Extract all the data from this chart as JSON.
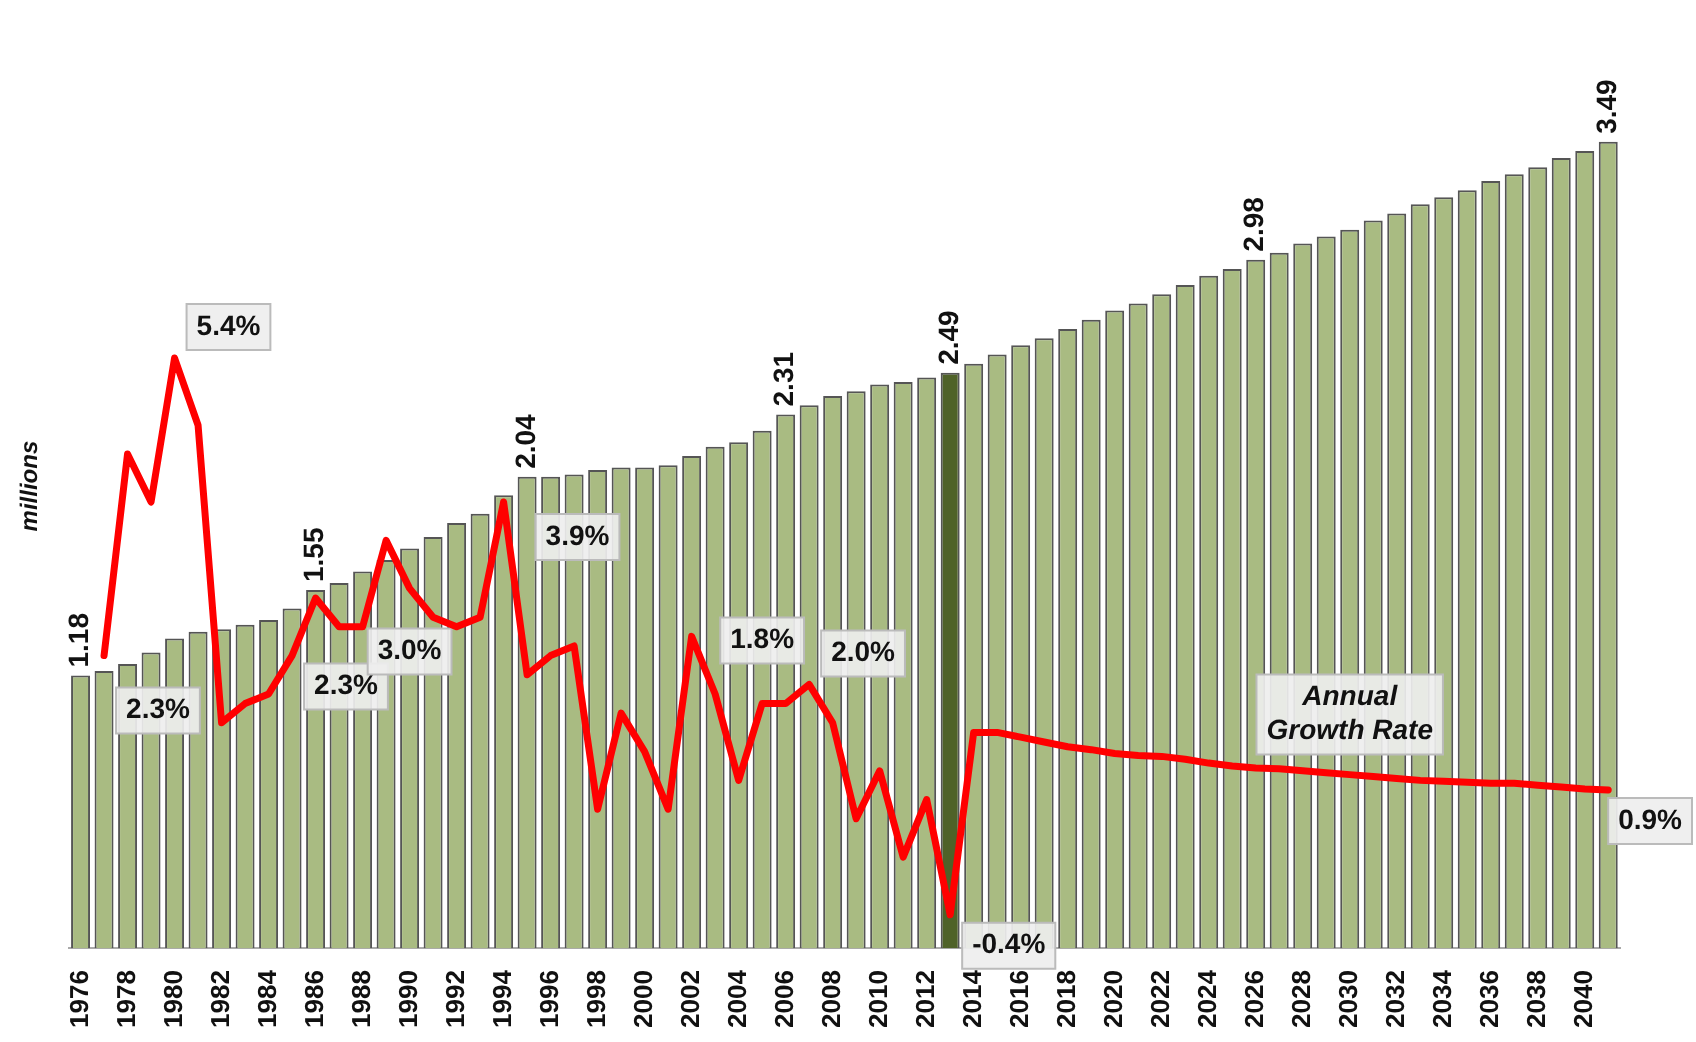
{
  "chart_data": {
    "type": "bar",
    "ylabel": "millions",
    "categories": [
      "1976",
      null,
      "1978",
      null,
      "1980",
      null,
      "1982",
      null,
      "1984",
      null,
      "1986",
      null,
      "1988",
      null,
      "1990",
      null,
      "1992",
      null,
      "1994",
      null,
      "1996",
      null,
      "1998",
      null,
      "2000",
      null,
      "2002",
      null,
      "2004",
      null,
      "2006",
      null,
      "2008",
      null,
      "2010",
      null,
      "2012",
      null,
      "2014",
      null,
      "2016",
      null,
      "2018",
      null,
      "2020",
      null,
      "2022",
      null,
      "2024",
      null,
      "2026",
      null,
      "2028",
      null,
      "2030",
      null,
      "2032",
      null,
      "2034",
      null,
      "2036",
      null,
      "2038",
      null,
      "2040",
      null
    ],
    "tick_labels": "x",
    "grid": false,
    "legend": false,
    "series": [
      {
        "colors": [
          "#a9bb82",
          "#a9bb82",
          "#a9bb82",
          "#a9bb82",
          "#a9bb82",
          "#a9bb82",
          "#a9bb82",
          "#a9bb82",
          "#a9bb82",
          "#a9bb82",
          "#a9bb82",
          "#a9bb82",
          "#a9bb82",
          "#a9bb82",
          "#a9bb82",
          "#a9bb82",
          "#a9bb82",
          "#a9bb82",
          "#a9bb82",
          "#a9bb82",
          "#a9bb82",
          "#a9bb82",
          "#a9bb82",
          "#a9bb82",
          "#a9bb82",
          "#a9bb82",
          "#a9bb82",
          "#a9bb82",
          "#a9bb82",
          "#a9bb82",
          "#a9bb82",
          "#a9bb82",
          "#a9bb82",
          "#a9bb82",
          "#a9bb82",
          "#a9bb82",
          "#a9bb82",
          "#4f6228",
          "#a9bb82",
          "#a9bb82",
          "#a9bb82",
          "#a9bb82",
          "#a9bb82",
          "#a9bb82",
          "#a9bb82",
          "#a9bb82",
          "#a9bb82",
          "#a9bb82",
          "#a9bb82",
          "#a9bb82",
          "#a9bb82",
          "#a9bb82",
          "#a9bb82",
          "#a9bb82",
          "#a9bb82",
          "#a9bb82",
          "#a9bb82",
          "#a9bb82",
          "#a9bb82",
          "#a9bb82",
          "#a9bb82",
          "#a9bb82",
          "#a9bb82",
          "#a9bb82",
          "#a9bb82",
          "#a9bb82"
        ],
        "values": [
          1.18,
          1.2,
          1.23,
          1.28,
          1.34,
          1.37,
          1.38,
          1.4,
          1.42,
          1.47,
          1.55,
          1.58,
          1.63,
          1.68,
          1.73,
          1.78,
          1.84,
          1.88,
          1.96,
          2.04,
          2.04,
          2.05,
          2.07,
          2.08,
          2.08,
          2.09,
          2.13,
          2.17,
          2.19,
          2.24,
          2.31,
          2.35,
          2.39,
          2.41,
          2.44,
          2.45,
          2.47,
          2.49,
          2.53,
          2.57,
          2.61,
          2.64,
          2.68,
          2.72,
          2.76,
          2.79,
          2.83,
          2.87,
          2.91,
          2.94,
          2.98,
          3.01,
          3.05,
          3.08,
          3.11,
          3.15,
          3.18,
          3.22,
          3.25,
          3.28,
          3.32,
          3.35,
          3.38,
          3.42,
          3.45,
          3.49
        ],
        "value_labels": [
          "1.18",
          null,
          null,
          null,
          null,
          null,
          null,
          null,
          null,
          null,
          "1.55",
          null,
          null,
          null,
          null,
          null,
          null,
          null,
          null,
          "2.04",
          null,
          null,
          null,
          null,
          null,
          null,
          null,
          null,
          null,
          null,
          "2.31",
          null,
          null,
          null,
          null,
          null,
          null,
          "2.49",
          null,
          null,
          null,
          null,
          null,
          null,
          null,
          null,
          null,
          null,
          null,
          null,
          "2.98",
          null,
          null,
          null,
          null,
          null,
          null,
          null,
          null,
          null,
          null,
          null,
          null,
          null,
          null,
          "3.49"
        ]
      },
      {
        "type": "line",
        "name": "Annual Growth Rate",
        "axis": "y2",
        "color": "#ff0000",
        "marker": "none",
        "values": [
          null,
          2.3,
          4.4,
          3.9,
          5.4,
          4.7,
          1.6,
          1.8,
          1.9,
          2.3,
          2.9,
          2.6,
          2.6,
          3.5,
          3.0,
          2.7,
          2.6,
          2.7,
          3.9,
          2.1,
          2.3,
          2.4,
          0.7,
          1.7,
          1.3,
          0.7,
          2.5,
          1.9,
          1.0,
          1.8,
          1.8,
          2.0,
          1.6,
          0.6,
          1.1,
          0.2,
          0.8,
          -0.4,
          1.5,
          1.5,
          1.45,
          1.4,
          1.35,
          1.32,
          1.28,
          1.26,
          1.25,
          1.22,
          1.18,
          1.15,
          1.13,
          1.12,
          1.1,
          1.08,
          1.06,
          1.04,
          1.02,
          1.0,
          0.99,
          0.98,
          0.97,
          0.97,
          0.95,
          0.93,
          0.91,
          0.9
        ],
        "value_labels": [
          null,
          "2.3%",
          null,
          null,
          "5.4%",
          null,
          null,
          null,
          null,
          "2.3%",
          null,
          null,
          null,
          null,
          "3.0%",
          null,
          null,
          null,
          "3.9%",
          null,
          null,
          null,
          null,
          null,
          null,
          null,
          null,
          null,
          null,
          "1.8%",
          null,
          "2.0%",
          null,
          null,
          null,
          null,
          null,
          "-0.4%",
          null,
          null,
          null,
          null,
          null,
          null,
          null,
          null,
          null,
          null,
          null,
          null,
          null,
          null,
          null,
          null,
          null,
          null,
          null,
          null,
          null,
          null,
          null,
          null,
          null,
          null,
          null,
          "0.9%"
        ]
      }
    ]
  }
}
